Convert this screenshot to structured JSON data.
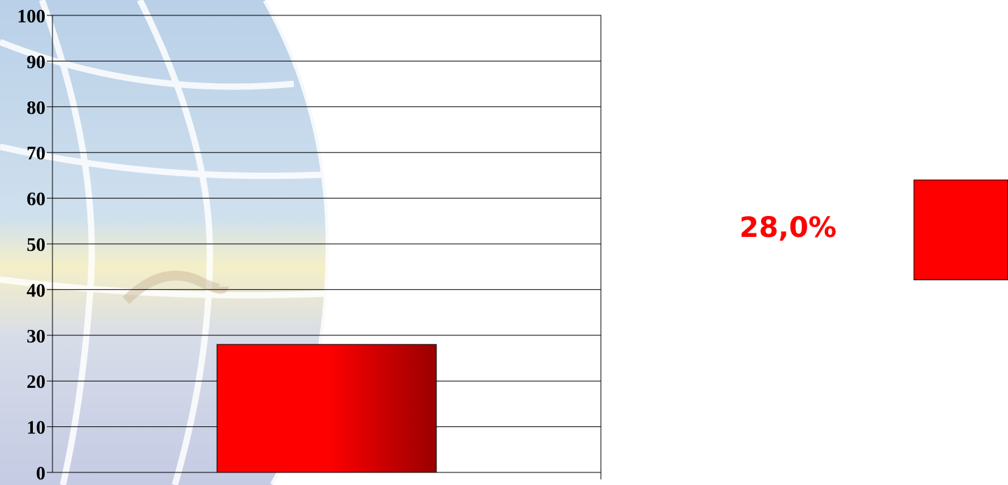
{
  "chart_data": {
    "type": "bar",
    "categories": [
      ""
    ],
    "values": [
      28
    ],
    "ylim": [
      0,
      100
    ],
    "yticks": [
      0,
      10,
      20,
      30,
      40,
      50,
      60,
      70,
      80,
      90,
      100
    ],
    "grid": true,
    "title": "",
    "xlabel": "",
    "ylabel": "",
    "data_label": "28,0%",
    "legend_placement": "right",
    "colors": {
      "bar_light": "#ff0000",
      "bar_dark": "#990000",
      "label": "#ff0000",
      "swatch": "#ff0000"
    }
  }
}
